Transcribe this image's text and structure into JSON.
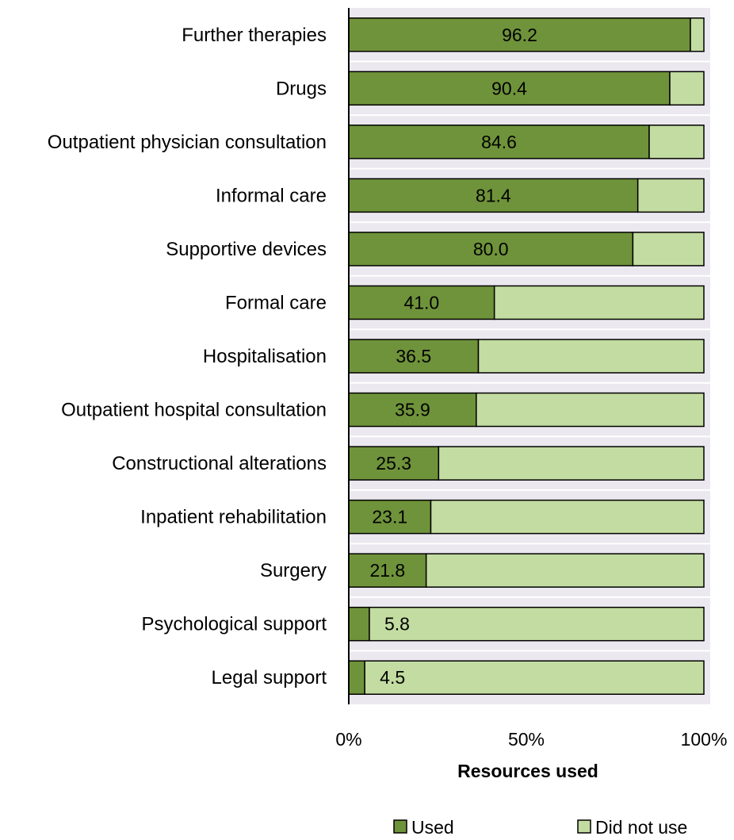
{
  "chart_data": {
    "type": "bar",
    "orientation": "horizontal",
    "stacked": true,
    "percent_stacked": true,
    "categories": [
      "Further therapies",
      "Drugs",
      "Outpatient physician consultation",
      "Informal care",
      "Supportive devices",
      "Formal care",
      "Hospitalisation",
      "Outpatient hospital consultation",
      "Constructional alterations",
      "Inpatient rehabilitation",
      "Surgery",
      "Psychological support",
      "Legal support"
    ],
    "series": [
      {
        "name": "Used",
        "color": "#6f933a",
        "values": [
          96.2,
          90.4,
          84.6,
          81.4,
          80.0,
          41.0,
          36.5,
          35.9,
          25.3,
          23.1,
          21.8,
          5.8,
          4.5
        ],
        "labels": [
          "96.2",
          "90.4",
          "84.6",
          "81.4",
          "80.0",
          "41.0",
          "36.5",
          "35.9",
          "25.3",
          "23.1",
          "21.8",
          "5.8",
          "4.5"
        ]
      },
      {
        "name": "Did not use",
        "color": "#c3dca1",
        "values": [
          3.8,
          9.6,
          15.4,
          18.6,
          20.0,
          59.0,
          63.5,
          64.1,
          74.7,
          76.9,
          78.2,
          94.2,
          95.5
        ]
      }
    ],
    "xlabel": "Resources used",
    "ylabel": "",
    "xlim": [
      0,
      100
    ],
    "xticks": [
      "0%",
      "50%",
      "100%"
    ],
    "plot_background": "#ebe8ef",
    "grid": false,
    "legend_position": "bottom"
  }
}
